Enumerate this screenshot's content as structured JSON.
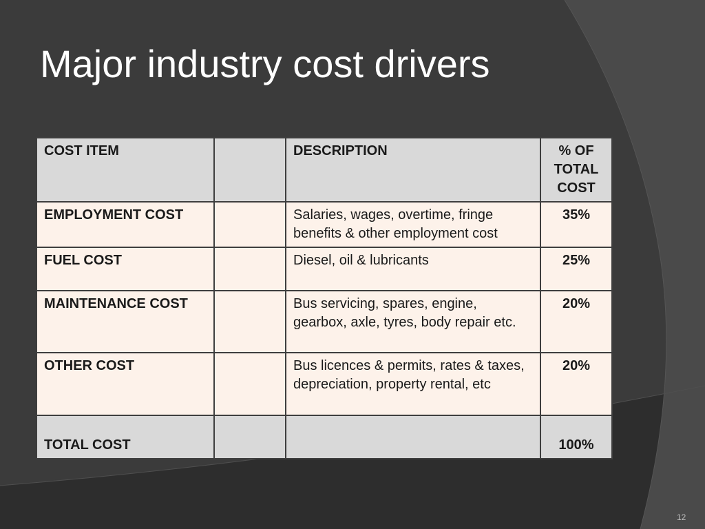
{
  "slide": {
    "title": "Major industry cost drivers",
    "page_number": "12"
  },
  "table": {
    "headers": {
      "cost_item": "COST ITEM",
      "blank": "",
      "description": "DESCRIPTION",
      "percent": "% OF TOTAL COST"
    },
    "rows": [
      {
        "item": "EMPLOYMENT COST",
        "blank": "",
        "description": "Salaries, wages, overtime, fringe benefits & other employment cost",
        "percent": "35%"
      },
      {
        "item": "FUEL COST",
        "blank": "",
        "description": "Diesel, oil & lubricants",
        "percent": "25%"
      },
      {
        "item": "MAINTENANCE COST",
        "blank": "",
        "description": "Bus servicing, spares, engine, gearbox, axle, tyres, body repair etc.",
        "percent": "20%"
      },
      {
        "item": "OTHER COST",
        "blank": "",
        "description": "Bus licences & permits, rates & taxes, depreciation, property rental, etc",
        "percent": "20%"
      }
    ],
    "total": {
      "item": "TOTAL COST",
      "blank": "",
      "description": "",
      "percent": "100%"
    }
  },
  "colors": {
    "background": "#3b3b3b",
    "header_fill": "#d9d9d9",
    "row_fill": "#fdf2ea",
    "title_text": "#ffffff"
  }
}
